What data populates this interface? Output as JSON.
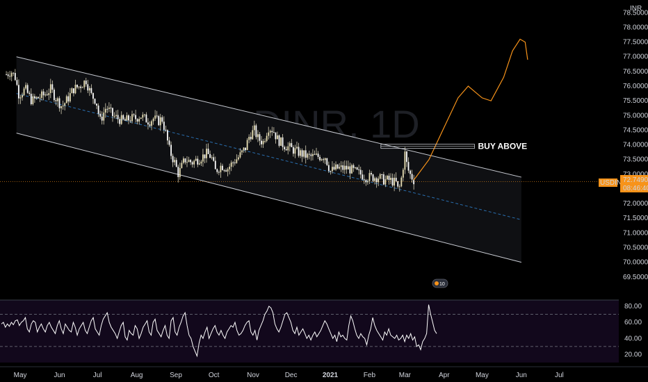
{
  "chart_data": [
    {
      "type": "candlestick",
      "symbol": "USDINR",
      "watermark": "USDINR, 1D",
      "currency_label": "INR",
      "y_ticks": [
        "78.5000",
        "78.0000",
        "77.5000",
        "77.0000",
        "76.5000",
        "76.0000",
        "75.5000",
        "75.0000",
        "74.5000",
        "74.0000",
        "73.5000",
        "73.0000",
        "72.5000",
        "72.0000",
        "71.5000",
        "71.0000",
        "70.5000",
        "70.0000",
        "69.5000"
      ],
      "ylim": [
        69.4,
        78.65
      ],
      "x_ticks": [
        "May",
        "Jun",
        "Jul",
        "Aug",
        "Sep",
        "Oct",
        "Nov",
        "Dec",
        "2021",
        "Feb",
        "Mar",
        "Apr",
        "May",
        "Jun",
        "Jul"
      ],
      "last_price_label": "USDINR",
      "last_price": "72.7490",
      "countdown": "08:46:40",
      "annotation": "BUY ABOVE",
      "badge": "10",
      "price_path": [
        [
          "2020-04-20",
          76.4
        ],
        [
          "2020-04-24",
          76.5
        ],
        [
          "2020-04-27",
          76.3
        ],
        [
          "2020-04-30",
          75.7
        ],
        [
          "2020-05-05",
          75.9
        ],
        [
          "2020-05-10",
          75.5
        ],
        [
          "2020-05-15",
          75.6
        ],
        [
          "2020-05-20",
          75.7
        ],
        [
          "2020-05-25",
          75.9
        ],
        [
          "2020-05-29",
          75.6
        ],
        [
          "2020-06-03",
          75.3
        ],
        [
          "2020-06-08",
          75.6
        ],
        [
          "2020-06-12",
          75.9
        ],
        [
          "2020-06-17",
          76.0
        ],
        [
          "2020-06-22",
          76.2
        ],
        [
          "2020-06-26",
          75.7
        ],
        [
          "2020-06-30",
          75.5
        ],
        [
          "2020-07-03",
          74.8
        ],
        [
          "2020-07-08",
          75.3
        ],
        [
          "2020-07-13",
          75.0
        ],
        [
          "2020-07-17",
          74.9
        ],
        [
          "2020-07-22",
          74.8
        ],
        [
          "2020-07-27",
          74.9
        ],
        [
          "2020-07-31",
          74.9
        ],
        [
          "2020-08-04",
          75.0
        ],
        [
          "2020-08-07",
          74.9
        ],
        [
          "2020-08-11",
          74.8
        ],
        [
          "2020-08-14",
          74.9
        ],
        [
          "2020-08-18",
          74.8
        ],
        [
          "2020-08-21",
          74.9
        ],
        [
          "2020-08-24",
          74.4
        ],
        [
          "2020-08-27",
          73.8
        ],
        [
          "2020-08-31",
          73.4
        ],
        [
          "2020-09-03",
          73.0
        ],
        [
          "2020-09-08",
          73.5
        ],
        [
          "2020-09-14",
          73.4
        ],
        [
          "2020-09-18",
          73.5
        ],
        [
          "2020-09-22",
          73.6
        ],
        [
          "2020-09-25",
          73.7
        ],
        [
          "2020-09-29",
          73.6
        ],
        [
          "2020-10-02",
          73.1
        ],
        [
          "2020-10-07",
          73.3
        ],
        [
          "2020-10-12",
          73.2
        ],
        [
          "2020-10-16",
          73.4
        ],
        [
          "2020-10-21",
          73.6
        ],
        [
          "2020-10-26",
          73.9
        ],
        [
          "2020-10-29",
          74.3
        ],
        [
          "2020-11-02",
          74.5
        ],
        [
          "2020-11-05",
          74.2
        ],
        [
          "2020-11-09",
          74.1
        ],
        [
          "2020-11-13",
          74.6
        ],
        [
          "2020-11-17",
          74.5
        ],
        [
          "2020-11-20",
          74.2
        ],
        [
          "2020-11-25",
          74.0
        ],
        [
          "2020-11-30",
          73.9
        ],
        [
          "2020-12-04",
          73.8
        ],
        [
          "2020-12-09",
          73.7
        ],
        [
          "2020-12-14",
          73.6
        ],
        [
          "2020-12-18",
          73.6
        ],
        [
          "2020-12-23",
          73.6
        ],
        [
          "2020-12-28",
          73.6
        ],
        [
          "2021-01-01",
          73.1
        ],
        [
          "2021-01-06",
          73.2
        ],
        [
          "2021-01-11",
          73.2
        ],
        [
          "2021-01-15",
          73.2
        ],
        [
          "2021-01-20",
          73.1
        ],
        [
          "2021-01-25",
          73.0
        ],
        [
          "2021-01-29",
          72.9
        ],
        [
          "2021-02-03",
          72.9
        ],
        [
          "2021-02-08",
          72.9
        ],
        [
          "2021-02-12",
          72.8
        ],
        [
          "2021-02-17",
          72.8
        ],
        [
          "2021-02-22",
          72.7
        ],
        [
          "2021-02-24",
          72.4
        ],
        [
          "2021-02-26",
          72.8
        ],
        [
          "2021-03-01",
          73.7
        ],
        [
          "2021-03-03",
          73.2
        ],
        [
          "2021-03-05",
          73.0
        ],
        [
          "2021-03-08",
          72.8
        ]
      ],
      "channel": {
        "upper": [
          [
            "2020-04-28",
            77.0
          ],
          [
            "2021-06-01",
            72.9
          ]
        ],
        "lower": [
          [
            "2020-04-28",
            74.4
          ],
          [
            "2021-06-01",
            70.0
          ]
        ],
        "mid": [
          [
            "2020-04-28",
            75.75
          ],
          [
            "2021-06-01",
            71.45
          ]
        ]
      },
      "projection": [
        [
          "2021-03-08",
          72.8
        ],
        [
          "2021-03-20",
          73.5
        ],
        [
          "2021-04-01",
          74.6
        ],
        [
          "2021-04-12",
          75.6
        ],
        [
          "2021-04-20",
          76.0
        ],
        [
          "2021-05-01",
          75.6
        ],
        [
          "2021-05-08",
          75.5
        ],
        [
          "2021-05-18",
          76.3
        ],
        [
          "2021-05-25",
          77.2
        ],
        [
          "2021-05-31",
          77.6
        ],
        [
          "2021-06-04",
          77.5
        ],
        [
          "2021-06-06",
          76.9
        ]
      ],
      "buy_line": 73.95
    },
    {
      "type": "line",
      "indicator": "RSI",
      "y_ticks": [
        "80.00",
        "60.00",
        "40.00",
        "20.00"
      ],
      "ylim": [
        10,
        86
      ],
      "levels": [
        70,
        30
      ],
      "values": [
        58,
        60,
        54,
        58,
        55,
        60,
        57,
        62,
        63,
        56,
        60,
        62,
        66,
        52,
        48,
        58,
        62,
        60,
        48,
        54,
        58,
        52,
        48,
        56,
        60,
        54,
        50,
        46,
        56,
        62,
        52,
        46,
        58,
        54,
        50,
        48,
        60,
        54,
        44,
        52,
        56,
        60,
        50,
        46,
        54,
        62,
        66,
        52,
        48,
        44,
        56,
        64,
        68,
        72,
        60,
        54,
        50,
        46,
        40,
        48,
        56,
        60,
        42,
        38,
        50,
        46,
        44,
        56,
        52,
        40,
        46,
        54,
        58,
        62,
        48,
        44,
        60,
        64,
        50,
        46,
        42,
        50,
        56,
        44,
        40,
        62,
        66,
        48,
        44,
        54,
        60,
        68,
        72,
        56,
        44,
        40,
        30,
        24,
        18,
        34,
        44,
        40,
        48,
        54,
        40,
        46,
        52,
        56,
        48,
        44,
        50,
        44,
        40,
        48,
        52,
        56,
        54,
        60,
        50,
        44,
        46,
        50,
        56,
        60,
        62,
        48,
        44,
        50,
        38,
        50,
        56,
        62,
        70,
        74,
        80,
        78,
        72,
        58,
        52,
        48,
        54,
        62,
        70,
        72,
        66,
        60,
        50,
        46,
        54,
        44,
        48,
        52,
        46,
        40,
        44,
        38,
        44,
        48,
        42,
        46,
        50,
        56,
        62,
        58,
        52,
        46,
        40,
        44,
        36,
        48,
        42,
        44,
        40,
        38,
        56,
        68,
        62,
        52,
        44,
        40,
        46,
        42,
        40,
        32,
        44,
        52,
        66,
        56,
        50,
        46,
        42,
        38,
        48,
        44,
        52,
        44,
        42,
        40,
        44,
        38,
        40,
        44,
        36,
        44,
        40,
        46,
        38,
        42,
        30,
        32,
        26,
        36,
        40,
        46,
        82,
        70,
        60,
        50,
        46
      ]
    }
  ]
}
